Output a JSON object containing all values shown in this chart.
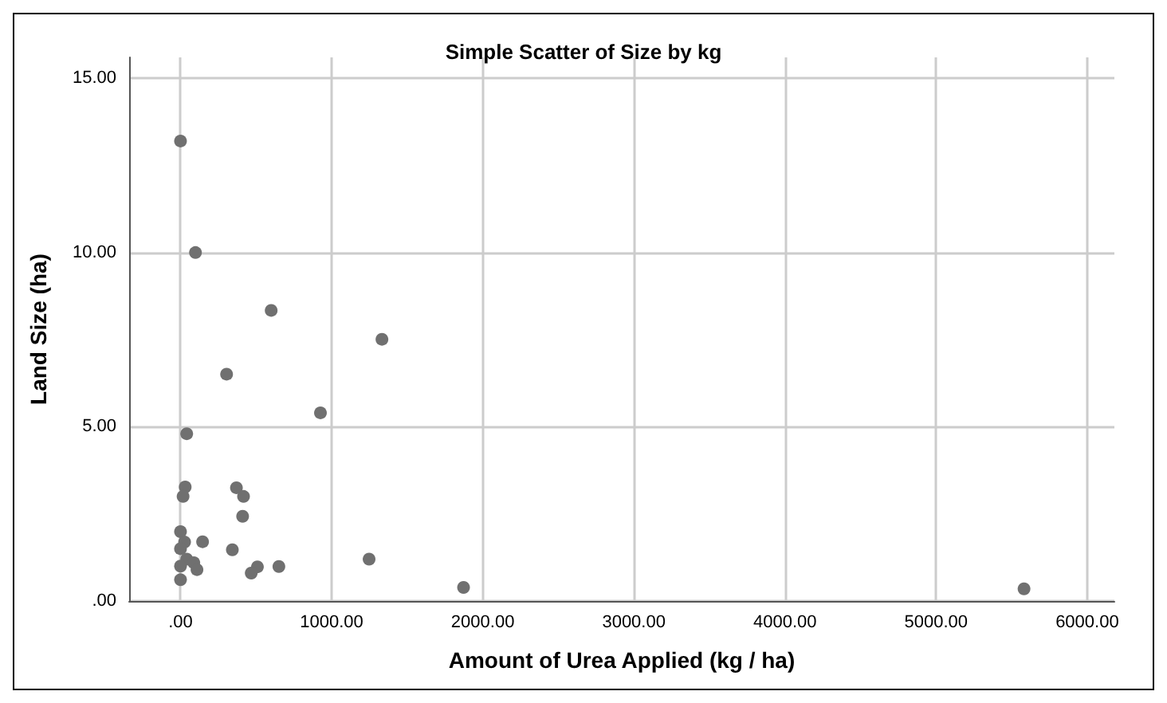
{
  "chart_data": {
    "type": "scatter",
    "title": "Simple Scatter of Size by kg",
    "xlabel": "Amount of Urea Applied (kg / ha)",
    "ylabel": "Land Size (ha)",
    "x": [
      0,
      99,
      600,
      305,
      1333,
      926,
      41,
      31,
      17,
      370,
      417,
      411,
      0,
      27,
      0,
      146,
      343,
      41,
      88,
      0,
      109,
      509,
      468,
      651,
      0,
      1248,
      1873,
      5582
    ],
    "series": [
      {
        "color": "#707070",
        "values": [
          13.2,
          10.0,
          8.34,
          6.51,
          7.51,
          5.4,
          4.8,
          3.27,
          3.0,
          3.25,
          3.0,
          2.43,
          1.99,
          1.69,
          1.5,
          1.7,
          1.47,
          1.2,
          1.1,
          1.0,
          0.9,
          0.98,
          0.8,
          0.99,
          0.61,
          1.2,
          0.39,
          0.35
        ]
      }
    ],
    "xlim": [
      -340,
      6180
    ],
    "ylim": [
      0,
      15.6
    ],
    "xticks": [
      {
        "value": 0,
        "label": ".00"
      },
      {
        "value": 1000,
        "label": "1000.00"
      },
      {
        "value": 2000,
        "label": "2000.00"
      },
      {
        "value": 3000,
        "label": "3000.00"
      },
      {
        "value": 4000,
        "label": "4000.00"
      },
      {
        "value": 5000,
        "label": "5000.00"
      },
      {
        "value": 6000,
        "label": "6000.00"
      }
    ],
    "yticks": [
      {
        "value": 0,
        "label": ".00"
      },
      {
        "value": 5,
        "label": "5.00"
      },
      {
        "value": 10,
        "label": "10.00"
      },
      {
        "value": 15,
        "label": "15.00"
      }
    ],
    "grid": true,
    "marker": "circle"
  }
}
